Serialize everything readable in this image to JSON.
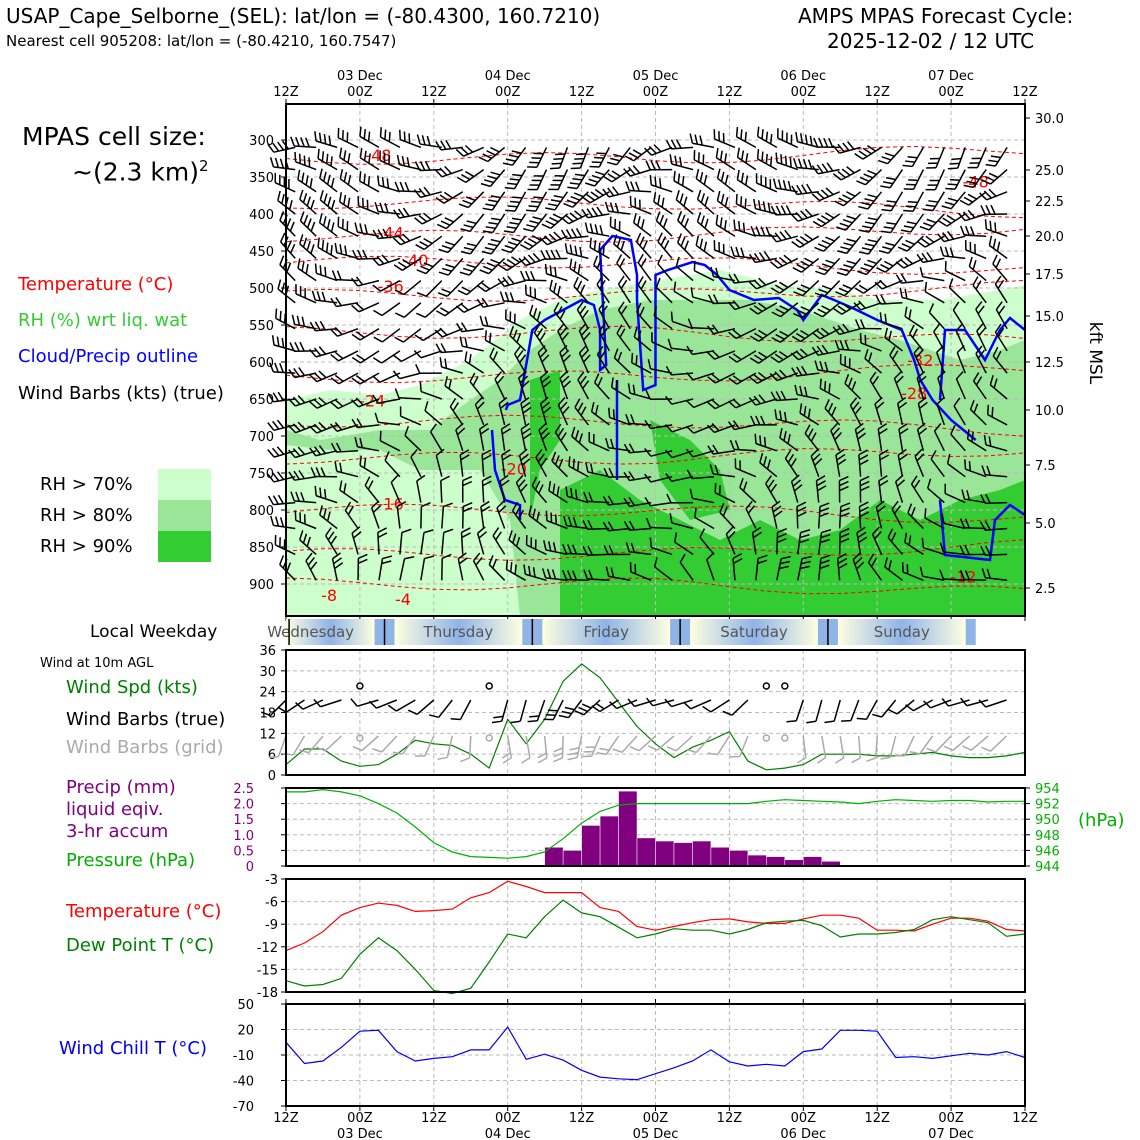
{
  "header": {
    "station": "USAP_Cape_Selborne_(SEL): lat/lon = (-80.4300, 160.7210)",
    "nearest_cell": "Nearest cell 905208: lat/lon = (-80.4210, 160.7547)",
    "cycle_title": "AMPS MPAS Forecast Cycle:",
    "cycle_time": "2025-12-02 / 12 UTC"
  },
  "left_panel": {
    "cell_size_line1": "MPAS cell size:",
    "cell_size_line2": "~(2.3 km)",
    "cell_size_sup": "2",
    "legend_temperature": "Temperature (°C)",
    "legend_rh": "RH (%) wrt liq. wat",
    "legend_cloud": "Cloud/Precip outline",
    "legend_wind": "Wind Barbs (kts) (true)",
    "rh_levels": [
      {
        "label": "RH > 70%",
        "color": "#ccffcc"
      },
      {
        "label": "RH > 80%",
        "color": "#99e699"
      },
      {
        "label": "RH > 90%",
        "color": "#33cc33"
      }
    ],
    "local_weekday": "Local Weekday",
    "wind_10m": "Wind at 10m AGL",
    "wind_spd": "Wind Spd (kts)",
    "wind_barbs_true": "Wind Barbs (true)",
    "wind_barbs_grid": "Wind Barbs (grid)",
    "precip_1": "Precip (mm)",
    "precip_2": "liquid eqiv.",
    "precip_3": "3-hr accum",
    "pressure": "Pressure (hPa)",
    "temperature": "Temperature (°C)",
    "dewpoint": "Dew Point T (°C)",
    "windchill": "Wind Chill T (°C)"
  },
  "colors": {
    "temperature": "#ff0000",
    "rh_green": "#33cc33",
    "cloud_outline": "#0000ff",
    "wind": "#000000",
    "wind_grid": "#aaaaaa",
    "windspeed": "#008000",
    "precip": "#800080",
    "pressure": "#00b000",
    "dewpoint": "#008000",
    "windchill": "#0000ee"
  },
  "time_axis": {
    "top_hours": [
      "12Z",
      "00Z",
      "12Z",
      "00Z",
      "12Z",
      "00Z",
      "12Z",
      "00Z",
      "12Z",
      "00Z",
      "12Z"
    ],
    "top_dates": [
      "03 Dec",
      "04 Dec",
      "05 Dec",
      "06 Dec",
      "07 Dec"
    ],
    "bottom_hours": [
      "12Z",
      "00Z",
      "12Z",
      "00Z",
      "12Z",
      "00Z",
      "12Z",
      "00Z",
      "12Z",
      "00Z",
      "12Z"
    ],
    "bottom_dates": [
      "03 Dec",
      "04 Dec",
      "05 Dec",
      "06 Dec",
      "07 Dec"
    ],
    "weekdays": [
      "Wednesday",
      "Thursday",
      "Friday",
      "Saturday",
      "Sunday"
    ]
  },
  "chart_data": [
    {
      "type": "heatmap",
      "title": "Time-height cross section",
      "y_pressure_hpa_ticks": [
        "300",
        "350",
        "400",
        "450",
        "500",
        "550",
        "600",
        "650",
        "700",
        "750",
        "800",
        "850",
        "900"
      ],
      "y_right_ticks_kft": [
        "30.0",
        "25.0",
        "22.5",
        "20.0",
        "17.5",
        "15.0",
        "12.5",
        "10.0",
        "7.5",
        "5.0",
        "2.5"
      ],
      "y_right_label": "kft MSL",
      "temperature_contour_labels": [
        {
          "text": "-48",
          "hour": 15,
          "p": 320
        },
        {
          "text": "-48",
          "hour": 112,
          "p": 356
        },
        {
          "text": "-44",
          "hour": 17,
          "p": 425
        },
        {
          "text": "-40",
          "hour": 21,
          "p": 462
        },
        {
          "text": "-36",
          "hour": 17,
          "p": 497
        },
        {
          "text": "-32",
          "hour": 103,
          "p": 597
        },
        {
          "text": "-28",
          "hour": 102,
          "p": 642
        },
        {
          "text": "-24",
          "hour": 14,
          "p": 652
        },
        {
          "text": "-20",
          "hour": 37,
          "p": 744
        },
        {
          "text": "-16",
          "hour": 17,
          "p": 791
        },
        {
          "text": "-12",
          "hour": 110,
          "p": 890
        },
        {
          "text": "-8",
          "hour": 7,
          "p": 915
        },
        {
          "text": "-4",
          "hour": 19,
          "p": 920
        }
      ]
    },
    {
      "type": "line",
      "title": "Wind Spd (kts)",
      "ylim": [
        0,
        36
      ],
      "yticks": [
        "0",
        "6",
        "12",
        "18",
        "24",
        "30",
        "36"
      ],
      "x_hours": [
        0,
        3,
        6,
        9,
        12,
        15,
        18,
        21,
        24,
        27,
        30,
        33,
        36,
        39,
        42,
        45,
        48,
        51,
        54,
        57,
        60,
        63,
        66,
        69,
        72,
        75,
        78,
        81,
        84,
        87,
        90,
        93,
        96,
        99,
        102,
        105,
        108,
        111,
        114,
        117,
        120
      ],
      "values": [
        3,
        7.5,
        7.5,
        4,
        2.5,
        3,
        6,
        10,
        9,
        8.5,
        6,
        2,
        16,
        9,
        16,
        27,
        32,
        28,
        21,
        14,
        9,
        5,
        8,
        10,
        12.5,
        4,
        1.5,
        2,
        3,
        6,
        6,
        6,
        5.5,
        5.5,
        6,
        6.5,
        5.5,
        5,
        5,
        5.5,
        6.5
      ]
    },
    {
      "type": "bar",
      "title": "Precip (mm) / Pressure (hPa)",
      "precip_ylim": [
        0,
        2.5
      ],
      "precip_yticks": [
        "0",
        "0.5",
        "1.0",
        "1.5",
        "2.0",
        "2.5"
      ],
      "pressure_ylim": [
        944,
        954
      ],
      "pressure_yticks": [
        "944",
        "946",
        "948",
        "950",
        "952",
        "954"
      ],
      "pressure_unit": "(hPa)",
      "precip_start_hours": [
        42,
        45,
        48,
        51,
        54,
        57,
        60,
        63,
        66,
        69,
        72,
        75,
        78,
        81,
        84,
        87
      ],
      "precip_values": [
        0.6,
        0.5,
        1.3,
        1.6,
        2.4,
        0.9,
        0.8,
        0.75,
        0.8,
        0.6,
        0.5,
        0.35,
        0.3,
        0.2,
        0.3,
        0.15
      ],
      "pressure_x_hours": [
        0,
        3,
        6,
        9,
        12,
        15,
        18,
        21,
        24,
        27,
        30,
        33,
        36,
        39,
        42,
        45,
        48,
        51,
        54,
        57,
        60,
        63,
        66,
        69,
        72,
        75,
        78,
        81,
        84,
        87,
        90,
        93,
        96,
        99,
        102,
        105,
        108,
        111,
        114,
        117,
        120
      ],
      "pressure_values": [
        953.5,
        953.5,
        953.8,
        953.5,
        953,
        952,
        950.8,
        949,
        947,
        945.8,
        945.2,
        945.1,
        945,
        945.2,
        945.8,
        947.5,
        949.5,
        951,
        951.8,
        952,
        952,
        952,
        952,
        952,
        952,
        952,
        952.3,
        952.5,
        952.4,
        952.3,
        952.2,
        952,
        952.3,
        952.5,
        952.4,
        952.3,
        952.4,
        952.4,
        952.2,
        952.3,
        952.3
      ]
    },
    {
      "type": "line",
      "title": "Temperature / Dew Point (°C)",
      "ylim": [
        -18,
        -3
      ],
      "yticks": [
        "-3",
        "-6",
        "-9",
        "-12",
        "-15",
        "-18"
      ],
      "x_hours": [
        0,
        3,
        6,
        9,
        12,
        15,
        18,
        21,
        24,
        27,
        30,
        33,
        36,
        39,
        42,
        45,
        48,
        51,
        54,
        57,
        60,
        63,
        66,
        69,
        72,
        75,
        78,
        81,
        84,
        87,
        90,
        93,
        96,
        99,
        102,
        105,
        108,
        111,
        114,
        117,
        120
      ],
      "series": [
        {
          "name": "Temperature (°C)",
          "values": [
            -12.5,
            -11.5,
            -10,
            -7.8,
            -6.8,
            -6.2,
            -6.5,
            -7.3,
            -7.2,
            -7,
            -5.5,
            -4.8,
            -3.3,
            -4,
            -4.8,
            -4.8,
            -4.8,
            -6.8,
            -7.3,
            -9.3,
            -9.8,
            -9.3,
            -8.8,
            -8.4,
            -8.3,
            -8.7,
            -8.9,
            -8.9,
            -8.3,
            -7.8,
            -7.8,
            -8.2,
            -9.8,
            -9.8,
            -9.9,
            -9,
            -8.2,
            -8.2,
            -8.6,
            -9.7,
            -9.9
          ]
        },
        {
          "name": "Dew Point T (°C)",
          "values": [
            -16.5,
            -17.2,
            -17,
            -16.2,
            -13,
            -10.8,
            -12.5,
            -15,
            -17.8,
            -18.2,
            -17.5,
            -14,
            -10.3,
            -10.8,
            -8,
            -5.8,
            -7.5,
            -8,
            -9.4,
            -10.8,
            -10.3,
            -9.6,
            -9.8,
            -9.8,
            -10.3,
            -9.7,
            -8.8,
            -8.6,
            -8.5,
            -9.2,
            -10.7,
            -10.3,
            -10.3,
            -10.1,
            -9.7,
            -8.4,
            -8,
            -8.4,
            -8.8,
            -10.6,
            -10.3
          ]
        }
      ]
    },
    {
      "type": "line",
      "title": "Wind Chill T (°C)",
      "ylim": [
        -70,
        50
      ],
      "yticks": [
        "50",
        "20",
        "-10",
        "-40",
        "-70"
      ],
      "x_hours": [
        0,
        3,
        6,
        9,
        12,
        15,
        18,
        21,
        24,
        27,
        30,
        33,
        36,
        39,
        42,
        45,
        48,
        51,
        54,
        57,
        60,
        63,
        66,
        69,
        72,
        75,
        78,
        81,
        84,
        87,
        90,
        93,
        96,
        99,
        102,
        105,
        108,
        111,
        114,
        117,
        120
      ],
      "values": [
        5,
        -20,
        -17,
        -1,
        18,
        19,
        -6,
        -17,
        -14,
        -12,
        -4,
        -4,
        23,
        -15,
        -9,
        -16,
        -28,
        -36,
        -38,
        -39,
        -32,
        -25,
        -17,
        -4,
        -18,
        -23,
        -21,
        -23,
        -6,
        -3,
        19,
        19,
        18,
        -13,
        -12,
        -14,
        -11,
        -8,
        -10,
        -6,
        -13
      ]
    }
  ]
}
